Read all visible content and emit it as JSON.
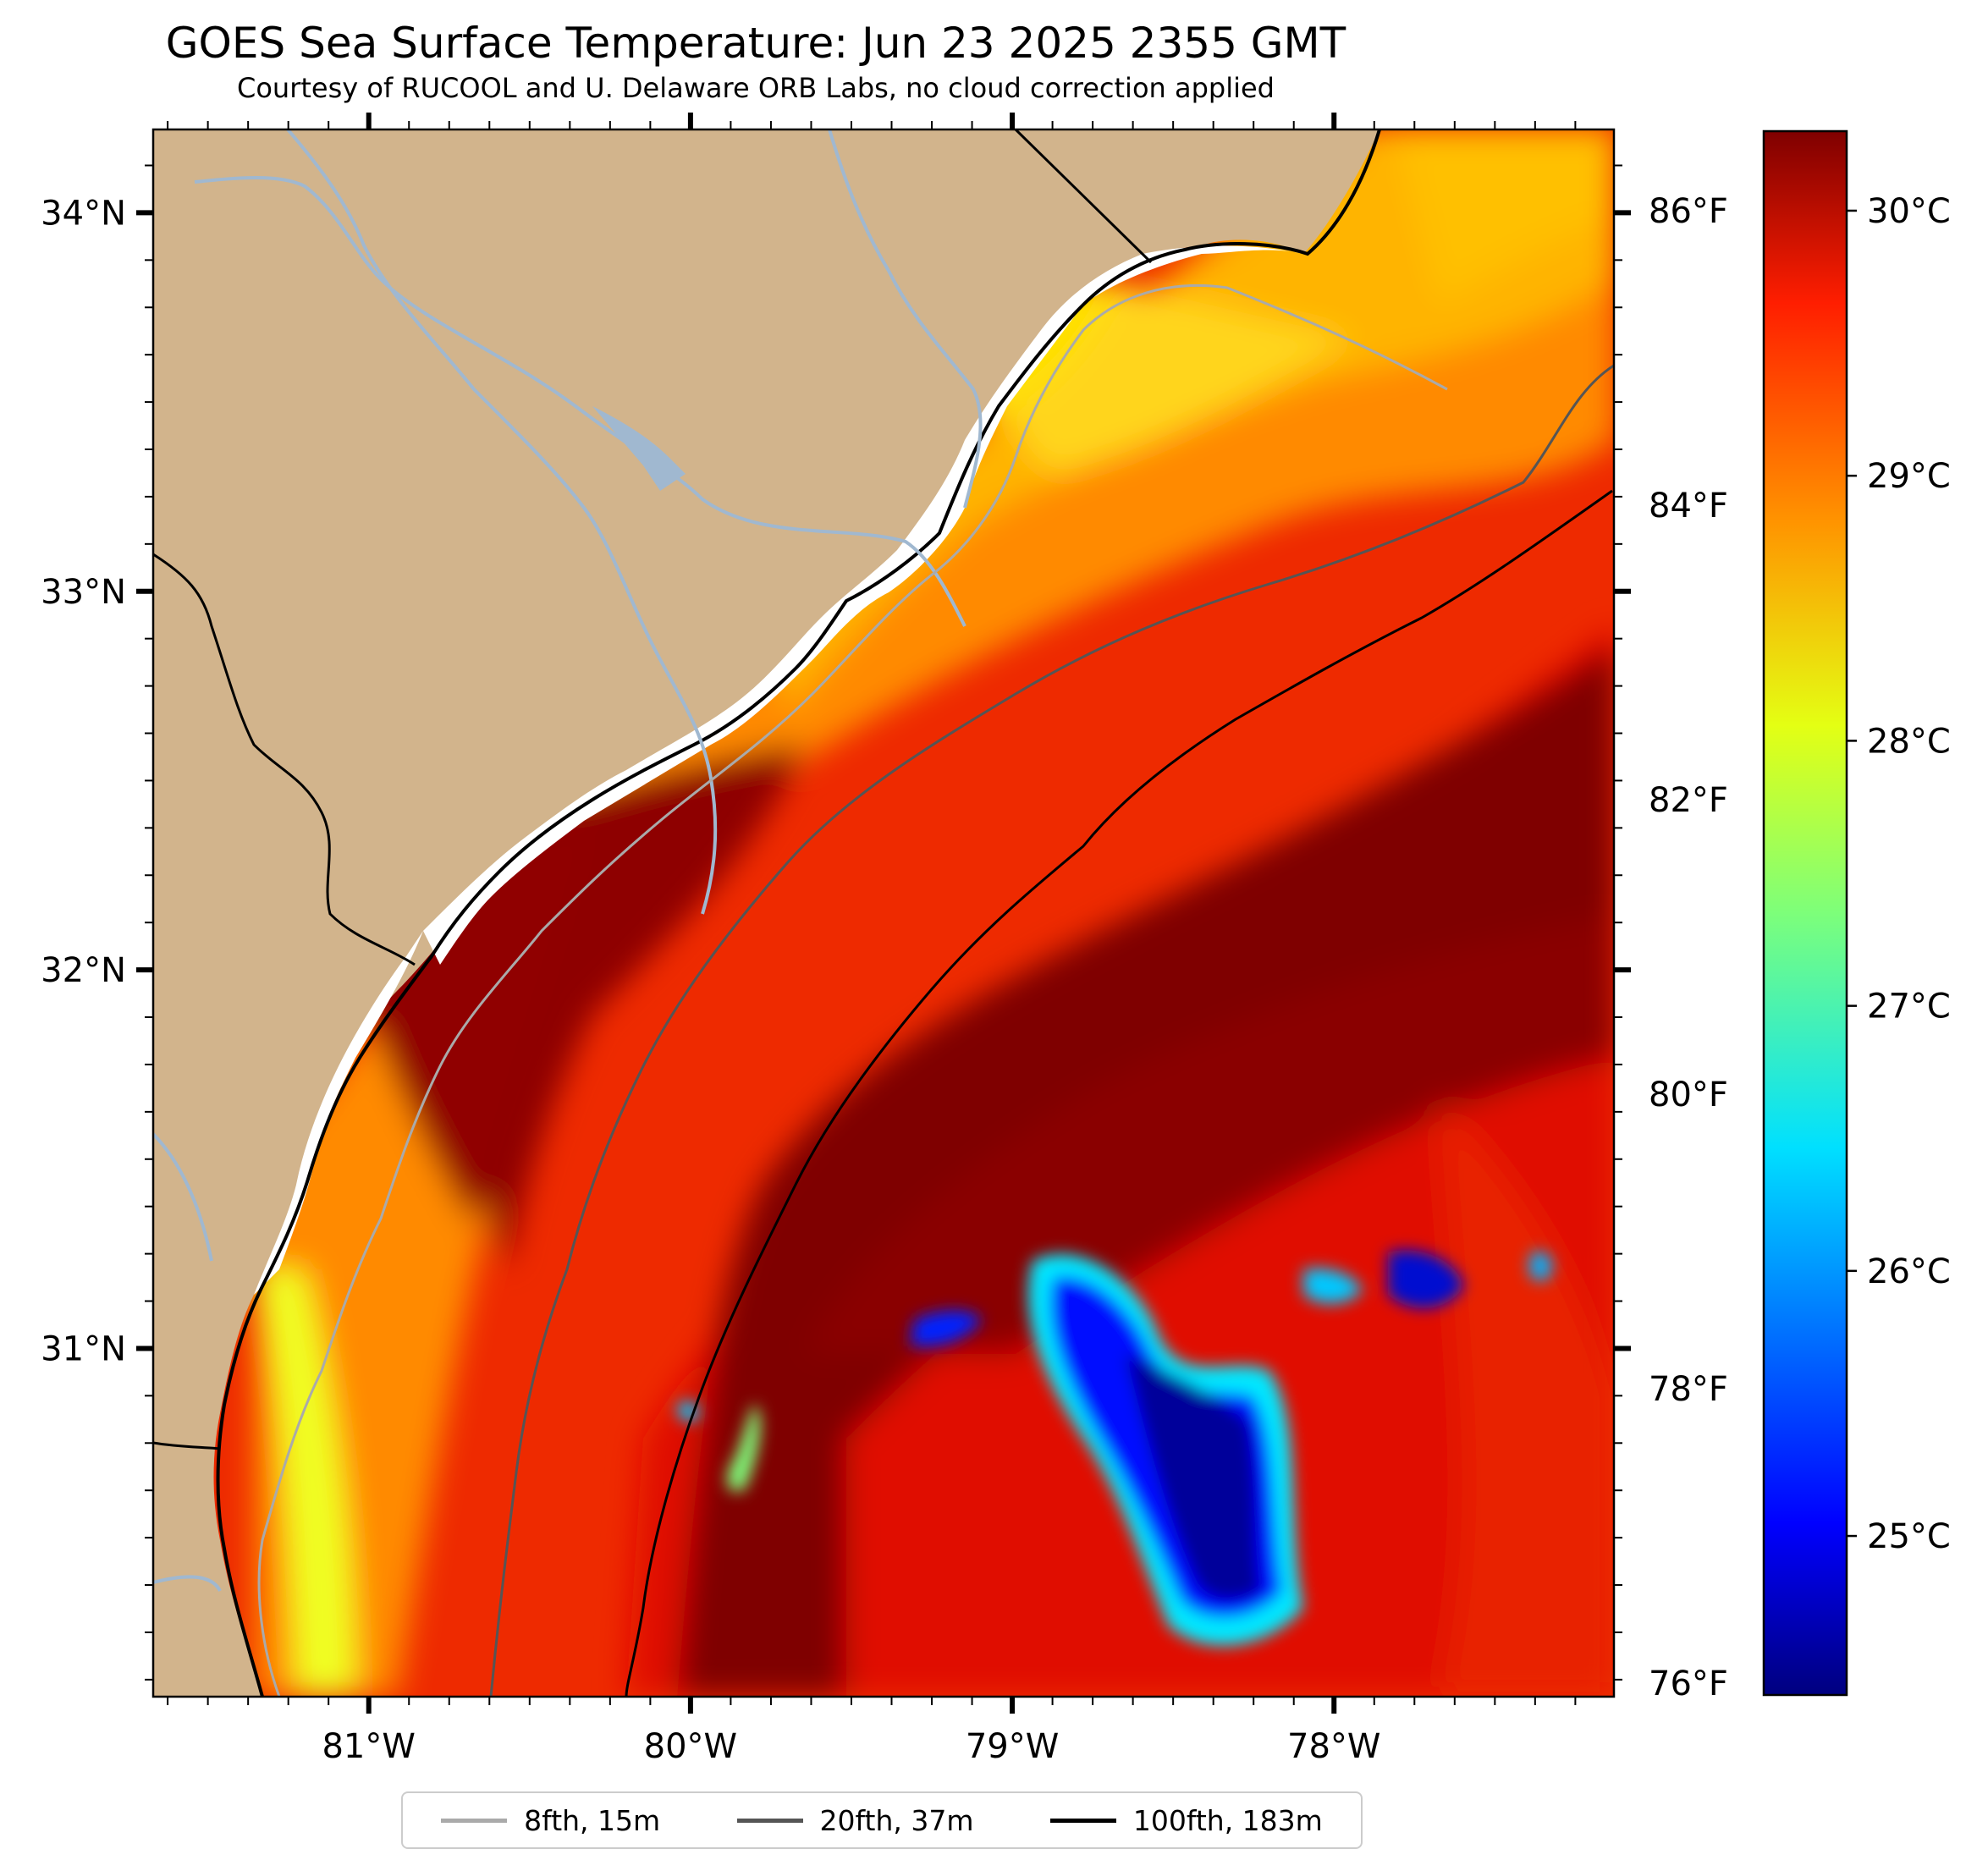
{
  "title": "GOES Sea Surface Temperature: Jun 23 2025 2355 GMT",
  "subtitle": "Courtesy of RUCOOL and U. Delaware ORB Labs, no cloud correction applied",
  "map": {
    "extent": {
      "lon_min": -81.67,
      "lon_max": -77.13,
      "lat_min": 30.08,
      "lat_max": 34.22
    },
    "land_color": "#d2b48c",
    "river_color": "#a0b8d0",
    "lat_ticks": [
      {
        "value": 34,
        "label": "34°N"
      },
      {
        "value": 33,
        "label": "33°N"
      },
      {
        "value": 32,
        "label": "32°N"
      },
      {
        "value": 31,
        "label": "31°N"
      }
    ],
    "lon_ticks": [
      {
        "value": -81,
        "label": "81°W"
      },
      {
        "value": -80,
        "label": "80°W"
      },
      {
        "value": -79,
        "label": "79°W"
      },
      {
        "value": -78,
        "label": "78°W"
      }
    ]
  },
  "colorbar": {
    "colormap": "jet",
    "celsius_range": [
      24.4,
      30.3
    ],
    "celsius_ticks": [
      {
        "value": 30,
        "label": "30°C"
      },
      {
        "value": 29,
        "label": "29°C"
      },
      {
        "value": 28,
        "label": "28°C"
      },
      {
        "value": 27,
        "label": "27°C"
      },
      {
        "value": 26,
        "label": "26°C"
      },
      {
        "value": 25,
        "label": "25°C"
      }
    ],
    "fahrenheit_ticks": [
      {
        "value": 86,
        "label": "86°F"
      },
      {
        "value": 84,
        "label": "84°F"
      },
      {
        "value": 82,
        "label": "82°F"
      },
      {
        "value": 80,
        "label": "80°F"
      },
      {
        "value": 78,
        "label": "78°F"
      },
      {
        "value": 76,
        "label": "76°F"
      }
    ]
  },
  "legend": [
    {
      "label": "8fth, 15m",
      "color": "#aaaaaa"
    },
    {
      "label": "20fth, 37m",
      "color": "#555555"
    },
    {
      "label": "100fth, 183m",
      "color": "#000000"
    }
  ]
}
